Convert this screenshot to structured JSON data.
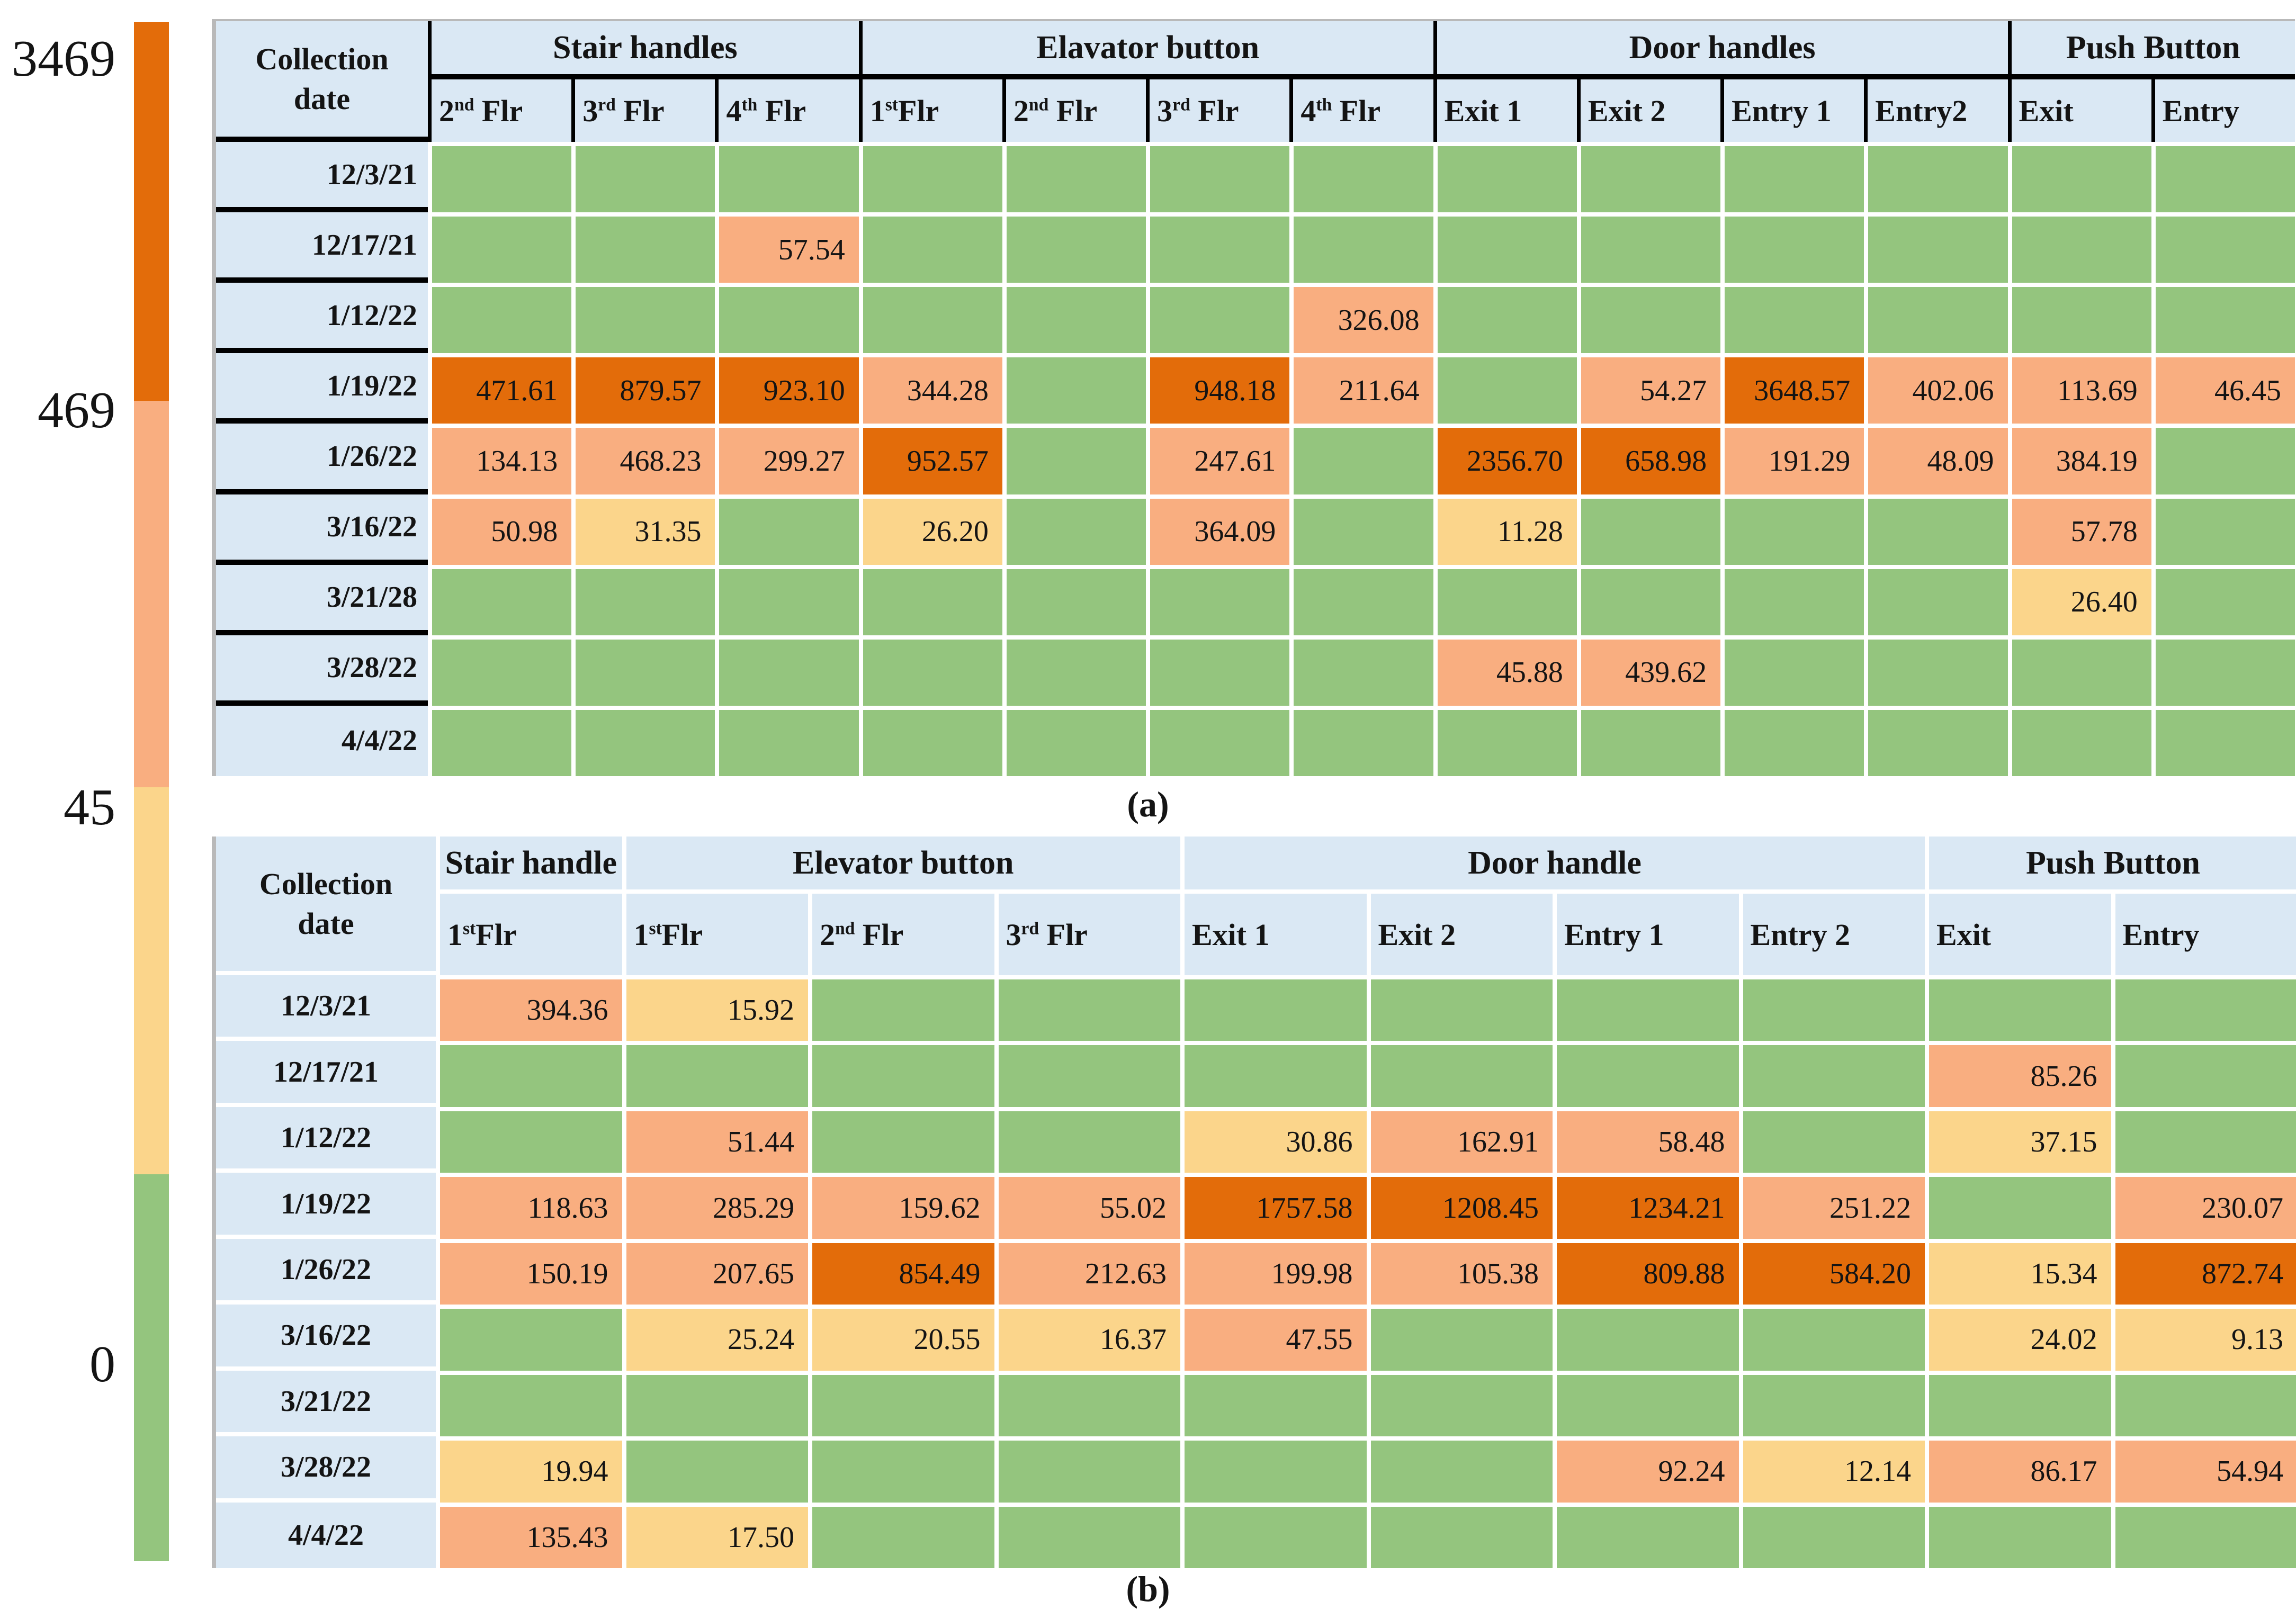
{
  "legend": {
    "tick_labels": [
      "3469",
      "469",
      "45",
      "0"
    ]
  },
  "thresholds": {
    "yellow_below": 45,
    "dark_orange_at_least": 469
  },
  "colors": {
    "dark_orange": "#E36C0A",
    "light_orange": "#F9AE80",
    "yellow": "#FBD58B",
    "green": "#94C57E",
    "header_blue": "#DAE8F4",
    "grid_white": "#FFFFFF",
    "border_black": "#000000",
    "edge_gray": "#B9B9B9"
  },
  "chart_data": [
    {
      "type": "heatmap",
      "caption": "(a)",
      "row_header": [
        "Collection",
        "date"
      ],
      "groups": [
        {
          "label": "Stair handles",
          "span": 3
        },
        {
          "label": "Elavator button",
          "span": 4
        },
        {
          "label": "Door handles",
          "span": 4
        },
        {
          "label": "Push Button",
          "span": 2
        }
      ],
      "columns": [
        {
          "pre": "2",
          "sup": "nd",
          "post": " Flr"
        },
        {
          "pre": "3",
          "sup": "rd",
          "post": " Flr"
        },
        {
          "pre": "4",
          "sup": "th",
          "post": " Flr"
        },
        {
          "pre": "1",
          "sup": "st",
          "post": "Flr"
        },
        {
          "pre": "2",
          "sup": "nd",
          "post": " Flr"
        },
        {
          "pre": "3",
          "sup": "rd",
          "post": " Flr"
        },
        {
          "pre": "4",
          "sup": "th",
          "post": " Flr"
        },
        {
          "pre": "Exit 1",
          "sup": "",
          "post": ""
        },
        {
          "pre": "Exit 2",
          "sup": "",
          "post": ""
        },
        {
          "pre": "Entry 1",
          "sup": "",
          "post": ""
        },
        {
          "pre": "Entry2",
          "sup": "",
          "post": ""
        },
        {
          "pre": "Exit",
          "sup": "",
          "post": ""
        },
        {
          "pre": "Entry",
          "sup": "",
          "post": ""
        }
      ],
      "rows": [
        "12/3/21",
        "12/17/21",
        "1/12/22",
        "1/19/22",
        "1/26/22",
        "3/16/22",
        "3/21/28",
        "3/28/22",
        "4/4/22"
      ],
      "values": [
        [
          null,
          null,
          null,
          null,
          null,
          null,
          null,
          null,
          null,
          null,
          null,
          null,
          null
        ],
        [
          null,
          null,
          "57.54",
          null,
          null,
          null,
          null,
          null,
          null,
          null,
          null,
          null,
          null
        ],
        [
          null,
          null,
          null,
          null,
          null,
          null,
          "326.08",
          null,
          null,
          null,
          null,
          null,
          null
        ],
        [
          "471.61",
          "879.57",
          "923.10",
          "344.28",
          null,
          "948.18",
          "211.64",
          null,
          "54.27",
          "3648.57",
          "402.06",
          "113.69",
          "46.45"
        ],
        [
          "134.13",
          "468.23",
          "299.27",
          "952.57",
          null,
          "247.61",
          null,
          "2356.70",
          "658.98",
          "191.29",
          "48.09",
          "384.19",
          null
        ],
        [
          "50.98",
          "31.35",
          null,
          "26.20",
          null,
          "364.09",
          null,
          "11.28",
          null,
          null,
          null,
          "57.78",
          null
        ],
        [
          null,
          null,
          null,
          null,
          null,
          null,
          null,
          null,
          null,
          null,
          null,
          "26.40",
          null
        ],
        [
          null,
          null,
          null,
          null,
          null,
          null,
          null,
          "45.88",
          "439.62",
          null,
          null,
          null,
          null
        ],
        [
          null,
          null,
          null,
          null,
          null,
          null,
          null,
          null,
          null,
          null,
          null,
          null,
          null
        ]
      ]
    },
    {
      "type": "heatmap",
      "caption": "(b)",
      "row_header": [
        "Collection",
        "date"
      ],
      "groups": [
        {
          "label": "Stair handle",
          "span": 1
        },
        {
          "label": "Elevator button",
          "span": 3
        },
        {
          "label": "Door handle",
          "span": 4
        },
        {
          "label": "Push Button",
          "span": 2
        }
      ],
      "columns": [
        {
          "pre": "1",
          "sup": "st",
          "post": "Flr"
        },
        {
          "pre": "1",
          "sup": "st",
          "post": "Flr"
        },
        {
          "pre": "2",
          "sup": "nd",
          "post": " Flr"
        },
        {
          "pre": "3",
          "sup": "rd",
          "post": " Flr"
        },
        {
          "pre": "Exit 1",
          "sup": "",
          "post": ""
        },
        {
          "pre": "Exit 2",
          "sup": "",
          "post": ""
        },
        {
          "pre": "Entry 1",
          "sup": "",
          "post": ""
        },
        {
          "pre": "Entry 2",
          "sup": "",
          "post": ""
        },
        {
          "pre": "Exit",
          "sup": "",
          "post": ""
        },
        {
          "pre": "Entry",
          "sup": "",
          "post": ""
        }
      ],
      "rows": [
        "12/3/21",
        "12/17/21",
        "1/12/22",
        "1/19/22",
        "1/26/22",
        "3/16/22",
        "3/21/22",
        "3/28/22",
        "4/4/22"
      ],
      "values": [
        [
          "394.36",
          "15.92",
          null,
          null,
          null,
          null,
          null,
          null,
          null,
          null
        ],
        [
          null,
          null,
          null,
          null,
          null,
          null,
          null,
          null,
          "85.26",
          null
        ],
        [
          null,
          "51.44",
          null,
          null,
          "30.86",
          "162.91",
          "58.48",
          null,
          "37.15",
          null
        ],
        [
          "118.63",
          "285.29",
          "159.62",
          "55.02",
          "1757.58",
          "1208.45",
          "1234.21",
          "251.22",
          null,
          "230.07"
        ],
        [
          "150.19",
          "207.65",
          "854.49",
          "212.63",
          "199.98",
          "105.38",
          "809.88",
          "584.20",
          "15.34",
          "872.74"
        ],
        [
          null,
          "25.24",
          "20.55",
          "16.37",
          "47.55",
          null,
          null,
          null,
          "24.02",
          "9.13"
        ],
        [
          null,
          null,
          null,
          null,
          null,
          null,
          null,
          null,
          null,
          null
        ],
        [
          "19.94",
          null,
          null,
          null,
          null,
          null,
          "92.24",
          "12.14",
          "86.17",
          "54.94"
        ],
        [
          "135.43",
          "17.50",
          null,
          null,
          null,
          null,
          null,
          null,
          null,
          null
        ]
      ]
    }
  ]
}
